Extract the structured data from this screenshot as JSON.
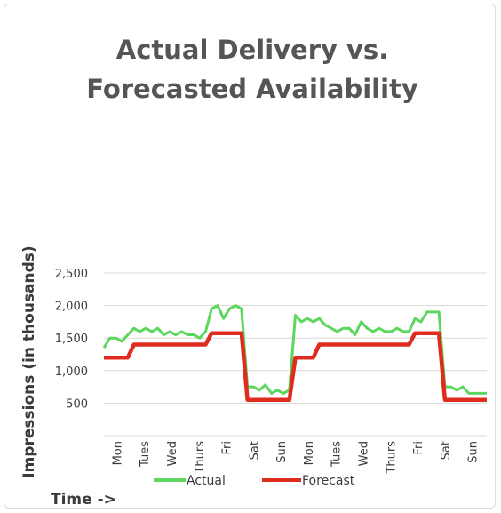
{
  "chart_data": {
    "type": "line",
    "title_lines": [
      "Actual Delivery vs.",
      "Forecasted Availability"
    ],
    "ylabel": "Impressions (in thousands)",
    "xlabel": "Time ->",
    "y_ticks": [
      "2,500",
      "2,000",
      "1,500",
      "1,000",
      "500",
      "-"
    ],
    "ylim": [
      0,
      2500
    ],
    "grid": true,
    "legend_position": "bottom",
    "x_labels": [
      "Mon",
      "Tues",
      "Wed",
      "Thurs",
      "Fri",
      "Sat",
      "Sun",
      "Mon",
      "Tues",
      "Wed",
      "Thurs",
      "Fri",
      "Sat",
      "Sun"
    ],
    "series": [
      {
        "name": "Actual",
        "color": "#5cd65c",
        "values": [
          1350,
          1500,
          1500,
          1450,
          1550,
          1650,
          1600,
          1650,
          1600,
          1650,
          1550,
          1600,
          1550,
          1600,
          1550,
          1550,
          1500,
          1600,
          1950,
          2000,
          1800,
          1950,
          2000,
          1950,
          750,
          750,
          700,
          780,
          650,
          700,
          650,
          700,
          1850,
          1750,
          1800,
          1750,
          1800,
          1700,
          1650,
          1600,
          1650,
          1650,
          1550,
          1750,
          1650,
          1600,
          1650,
          1600,
          1600,
          1650,
          1600,
          1600,
          1800,
          1750,
          1900,
          1900,
          1900,
          750,
          750,
          700,
          750,
          650,
          650,
          650,
          650
        ]
      },
      {
        "name": "Forecast",
        "color": "#e02b1f",
        "values": [
          1200,
          1200,
          1200,
          1200,
          1200,
          1400,
          1400,
          1400,
          1400,
          1400,
          1400,
          1400,
          1400,
          1400,
          1400,
          1400,
          1400,
          1400,
          1575,
          1575,
          1575,
          1575,
          1575,
          1575,
          550,
          550,
          550,
          550,
          550,
          550,
          550,
          550,
          1200,
          1200,
          1200,
          1200,
          1400,
          1400,
          1400,
          1400,
          1400,
          1400,
          1400,
          1400,
          1400,
          1400,
          1400,
          1400,
          1400,
          1400,
          1400,
          1400,
          1575,
          1575,
          1575,
          1575,
          1575,
          550,
          550,
          550,
          550,
          550,
          550,
          550,
          550
        ]
      }
    ]
  }
}
